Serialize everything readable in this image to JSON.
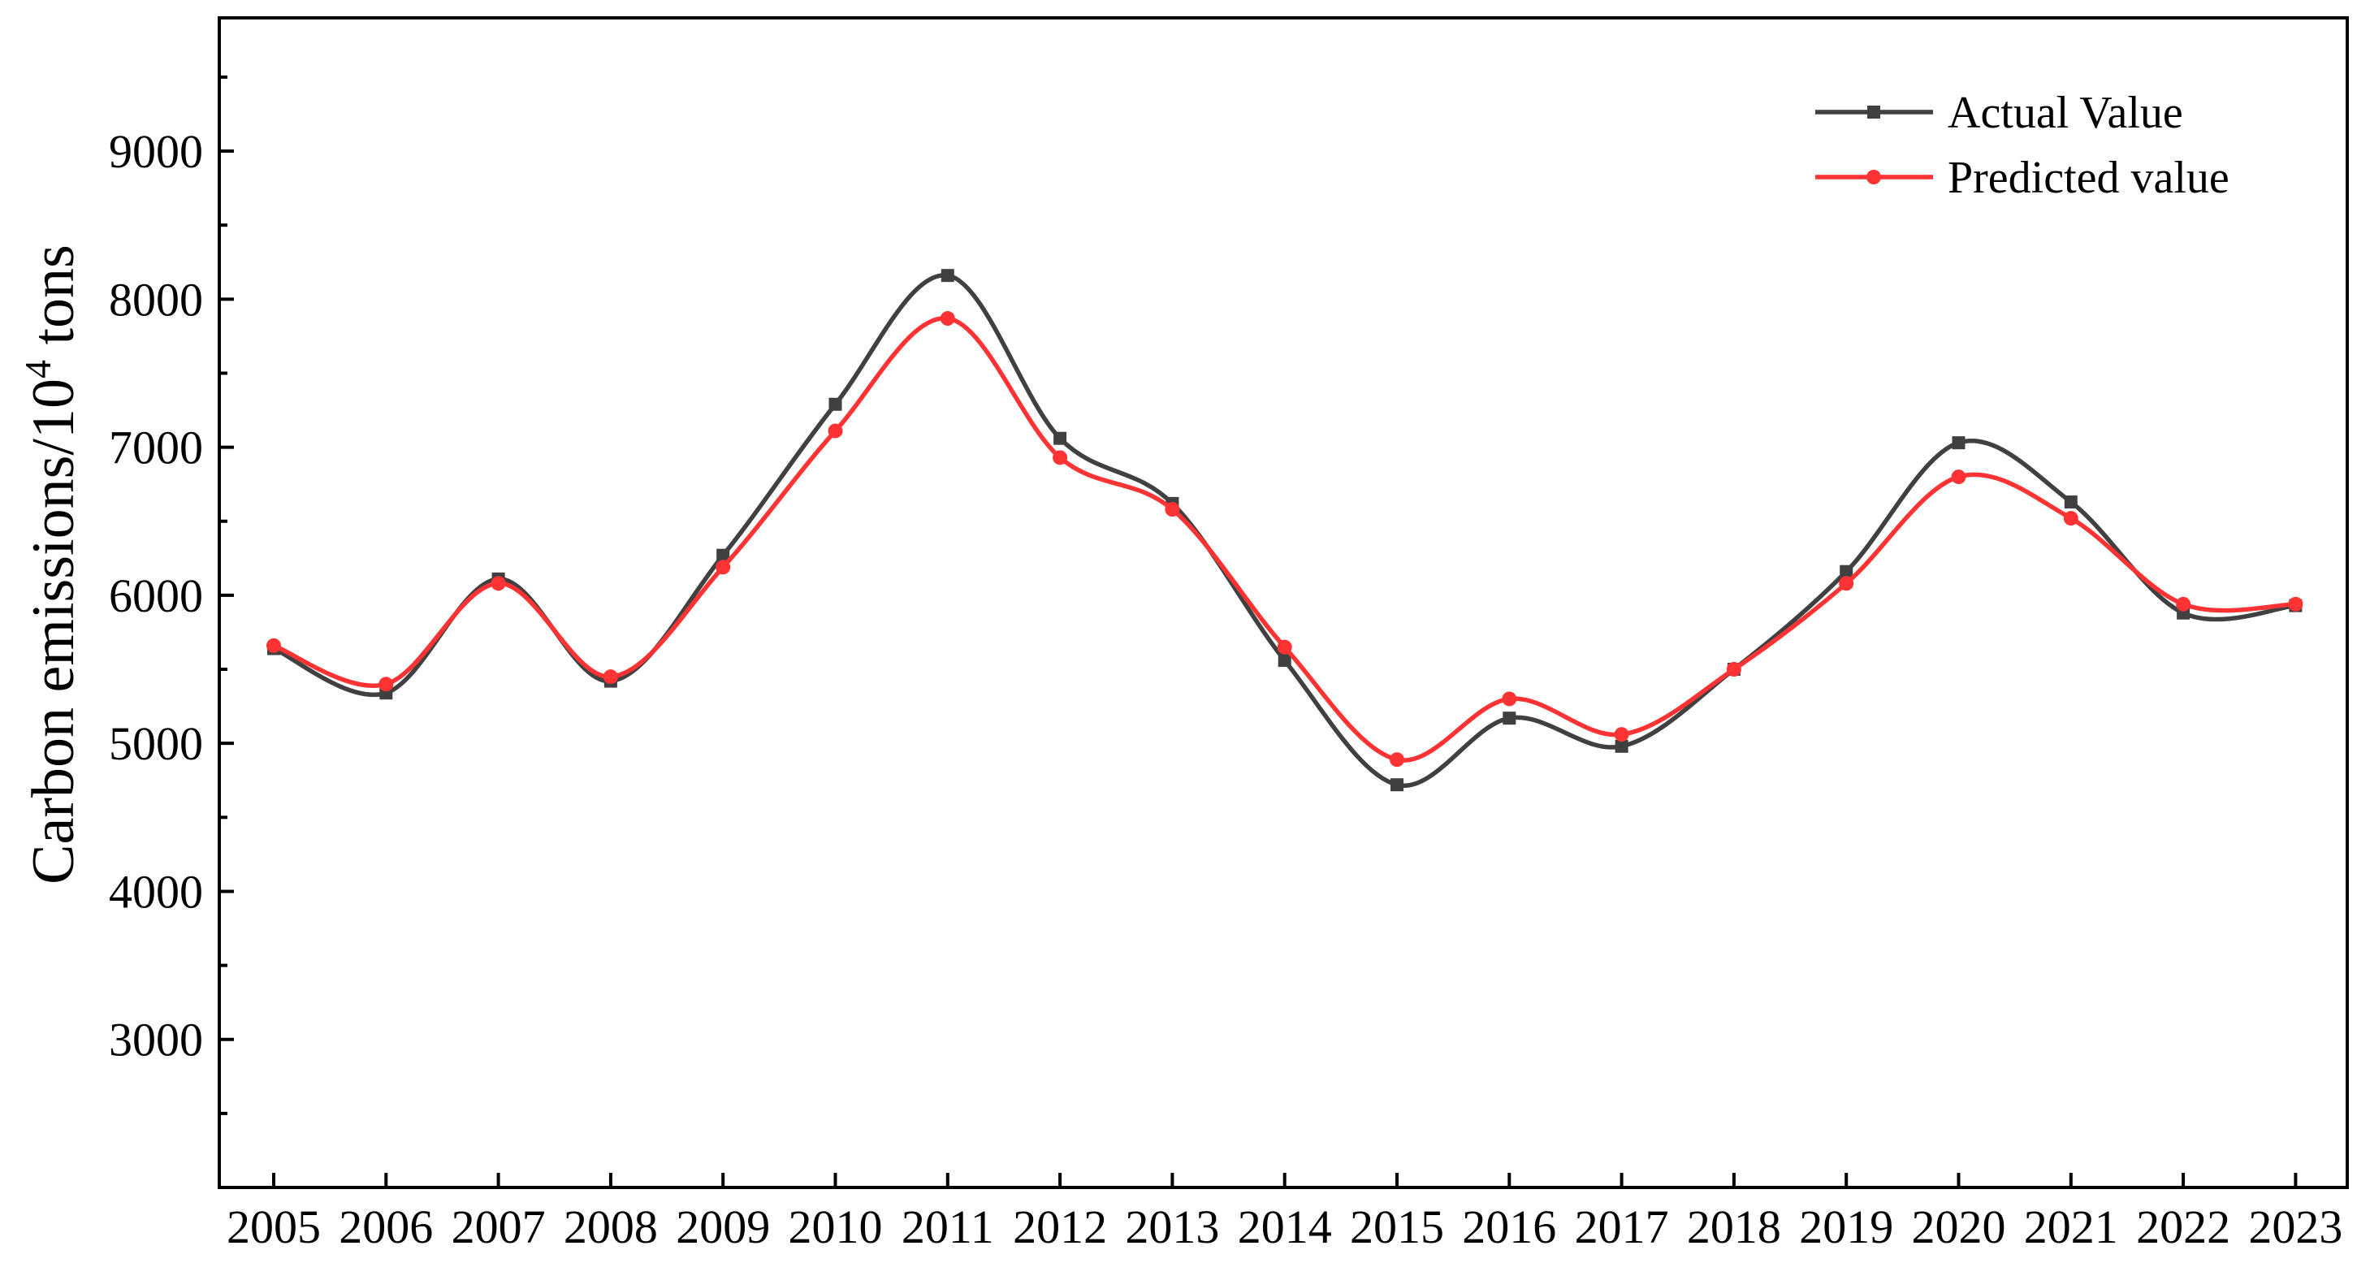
{
  "chart_data": {
    "type": "line",
    "categories": [
      "2005",
      "2006",
      "2007",
      "2008",
      "2009",
      "2010",
      "2011",
      "2012",
      "2013",
      "2014",
      "2015",
      "2016",
      "2017",
      "2018",
      "2019",
      "2020",
      "2021",
      "2022",
      "2023"
    ],
    "series": [
      {
        "name": "Actual Value",
        "color": "#404040",
        "marker": "square",
        "values": [
          5640,
          5340,
          6110,
          5420,
          6270,
          7290,
          8160,
          7060,
          6620,
          5560,
          4720,
          5170,
          4980,
          5500,
          6160,
          7030,
          6630,
          5880,
          5930
        ]
      },
      {
        "name": "Predicted value",
        "color": "#ff3333",
        "marker": "circle",
        "values": [
          5660,
          5400,
          6080,
          5450,
          6190,
          7110,
          7870,
          6930,
          6580,
          5650,
          4890,
          5300,
          5060,
          5500,
          6080,
          6800,
          6520,
          5940,
          5940
        ]
      }
    ],
    "title": "",
    "xlabel": "",
    "ylabel": {
      "main": "Carbon emissions/10",
      "sup": "4",
      "tail": " tons"
    },
    "y_ticks": [
      "3000",
      "4000",
      "5000",
      "6000",
      "7000",
      "8000",
      "9000"
    ],
    "ylim": [
      2000,
      9900
    ],
    "grid": false,
    "legend_position": "top-right"
  }
}
